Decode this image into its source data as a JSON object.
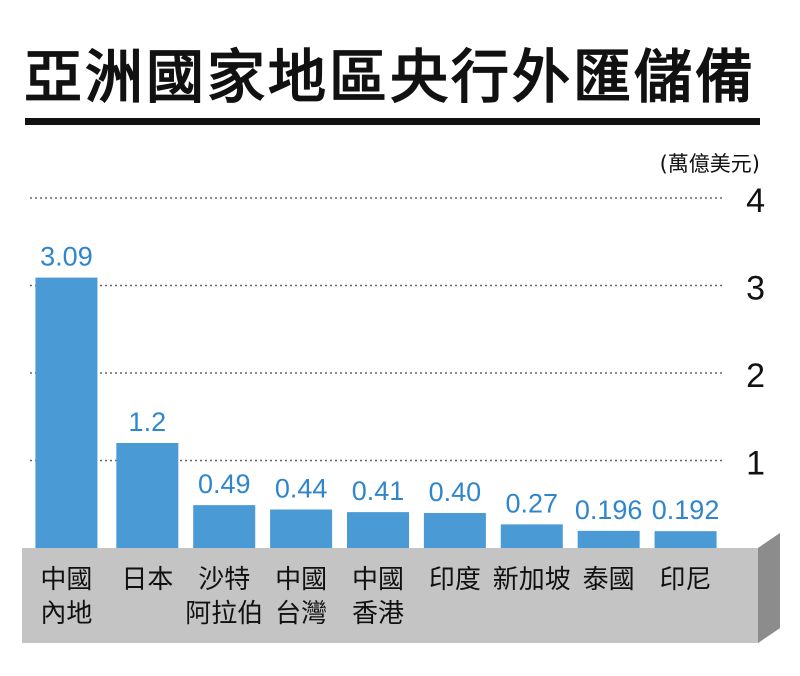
{
  "title": "亞洲國家地區央行外匯儲備",
  "unit": "(萬億美元)",
  "chart_data": {
    "type": "bar",
    "categories": [
      "中國\n內地",
      "日本",
      "沙特\n阿拉伯",
      "中國\n台灣",
      "中國\n香港",
      "印度",
      "新加坡",
      "泰國",
      "印尼"
    ],
    "values": [
      3.09,
      1.2,
      0.49,
      0.44,
      0.41,
      0.4,
      0.27,
      0.196,
      0.192
    ],
    "value_labels": [
      "3.09",
      "1.2",
      "0.49",
      "0.44",
      "0.41",
      "0.40",
      "0.27",
      "0.196",
      "0.192"
    ],
    "ylim": [
      0,
      4
    ],
    "yticks": [
      "1",
      "2",
      "3",
      "4"
    ],
    "grid": true,
    "bar_color": "#4a9ad6",
    "label_color": "#2f86cc",
    "base_color": "#b0b0b0"
  }
}
